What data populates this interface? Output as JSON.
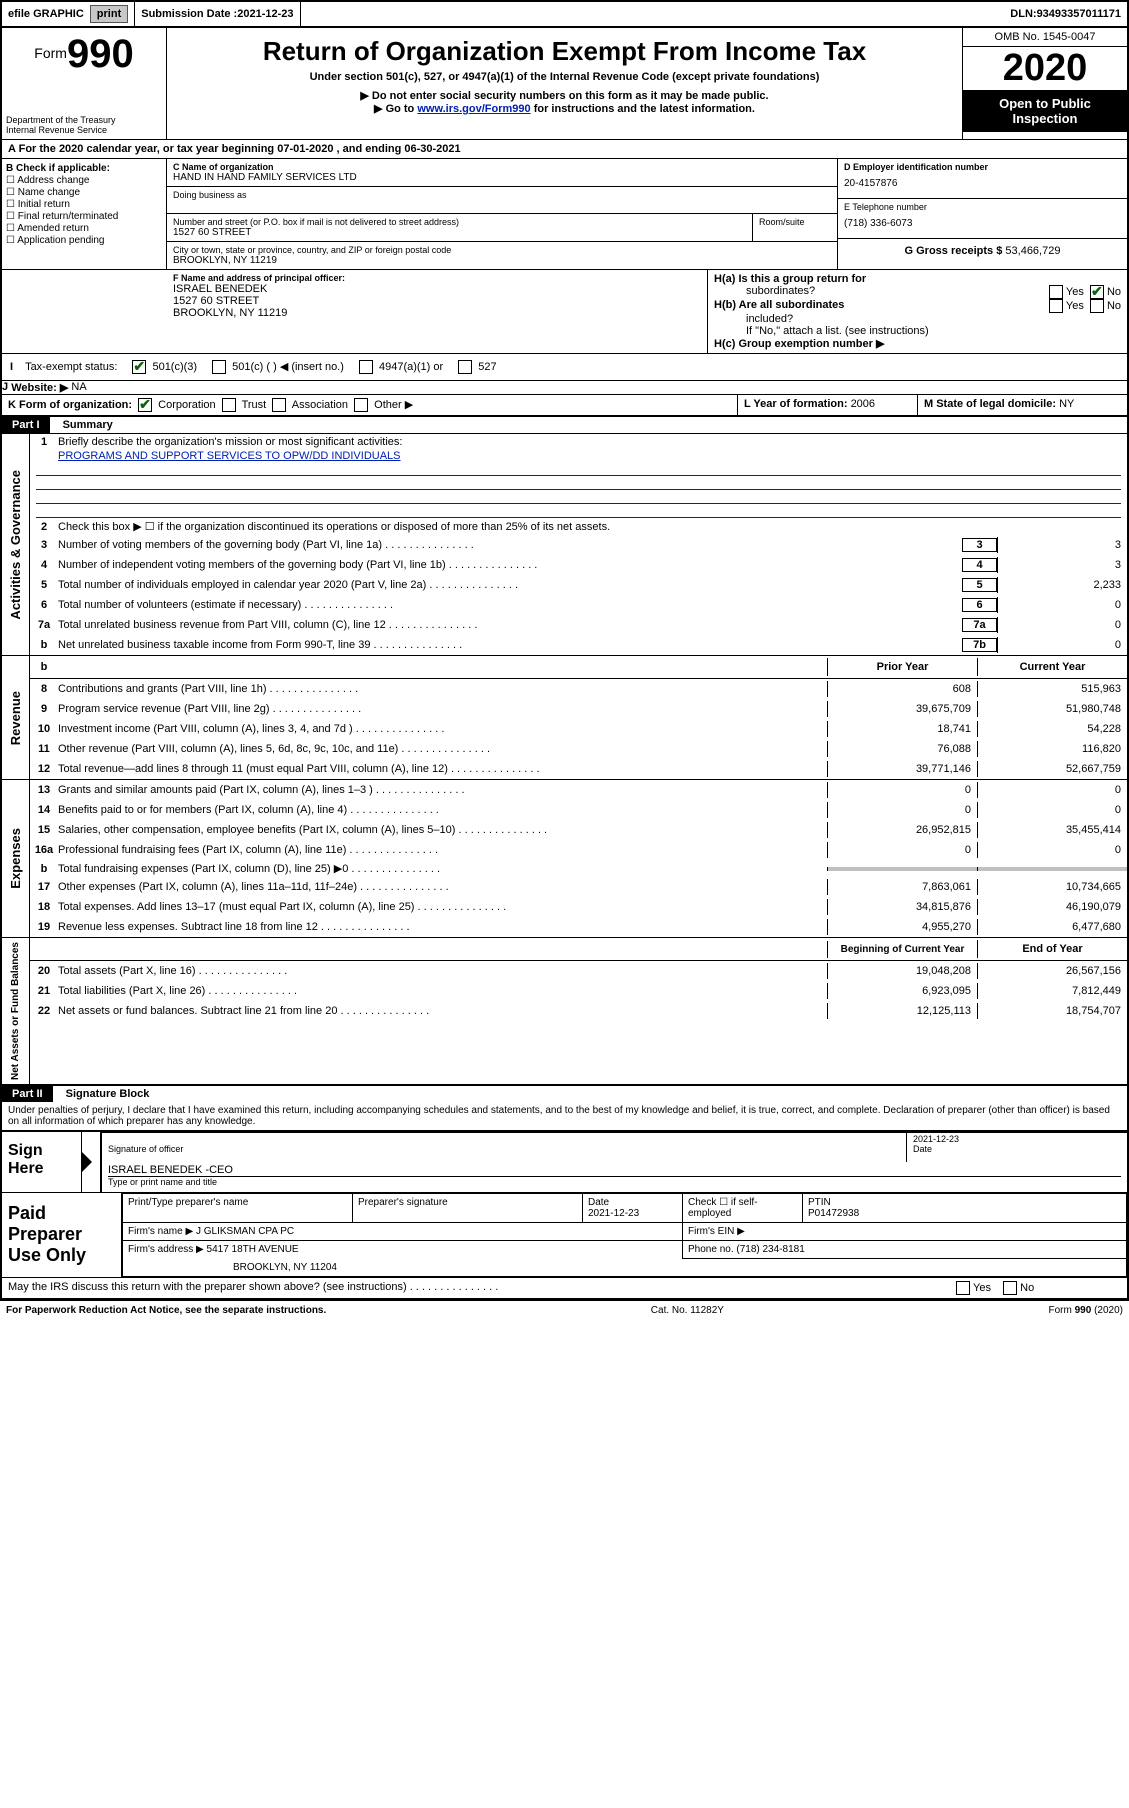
{
  "topbar": {
    "efile": "efile GRAPHIC",
    "print": "print",
    "subdate_label": "Submission Date : ",
    "subdate": "2021-12-23",
    "dln_label": "DLN: ",
    "dln": "93493357011171"
  },
  "header": {
    "form_label": "Form",
    "form_num": "990",
    "title": "Return of Organization Exempt From Income Tax",
    "subtitle": "Under section 501(c), 527, or 4947(a)(1) of the Internal Revenue Code (except private foundations)",
    "note1": "▶ Do not enter social security numbers on this form as it may be made public.",
    "note2_pre": "▶ Go to ",
    "note2_link": "www.irs.gov/Form990",
    "note2_post": " for instructions and the latest information.",
    "dept": "Department of the Treasury",
    "irs": "Internal Revenue Service",
    "omb": "OMB No. 1545-0047",
    "year": "2020",
    "open1": "Open to Public",
    "open2": "Inspection"
  },
  "period": {
    "text": "For the 2020 calendar year, or tax year beginning 07-01-2020     , and ending 06-30-2021"
  },
  "B": {
    "title": "B Check if applicable:",
    "items": [
      "Address change",
      "Name change",
      "Initial return",
      "Final return/terminated",
      "Amended return",
      "Application pending"
    ]
  },
  "C": {
    "name_label": "C Name of organization",
    "name": "HAND IN HAND FAMILY SERVICES LTD",
    "dba_label": "Doing business as",
    "dba": "",
    "addr_label": "Number and street (or P.O. box if mail is not delivered to street address)",
    "room_label": "Room/suite",
    "addr": "1527 60 STREET",
    "city_label": "City or town, state or province, country, and ZIP or foreign postal code",
    "city": "BROOKLYN, NY  11219"
  },
  "D": {
    "label": "D Employer identification number",
    "ein": "20-4157876"
  },
  "E": {
    "label": "E Telephone number",
    "phone": "(718) 336-6073"
  },
  "G": {
    "label": "G Gross receipts $ ",
    "val": "53,466,729"
  },
  "F": {
    "label": "F  Name and address of principal officer:",
    "name": "ISRAEL BENEDEK",
    "addr1": "1527 60 STREET",
    "addr2": "BROOKLYN, NY  11219"
  },
  "H": {
    "a": "H(a)  Is this a group return for",
    "a2": "subordinates?",
    "a_yes": "Yes",
    "a_no": "No",
    "b": "H(b)  Are all subordinates",
    "b2": "included?",
    "b_note": "If \"No,\" attach a list. (see instructions)",
    "c": "H(c)  Group exemption number ▶"
  },
  "I": {
    "label": "I",
    "text": "Tax-exempt status:",
    "o1": "501(c)(3)",
    "o2": "501(c) (  ) ◀ (insert no.)",
    "o3": "4947(a)(1) or",
    "o4": "527"
  },
  "J": {
    "label": "J",
    "text": "Website: ▶",
    "val": "NA"
  },
  "K": {
    "label": "K Form of organization:",
    "o1": "Corporation",
    "o2": "Trust",
    "o3": "Association",
    "o4": "Other ▶"
  },
  "L": {
    "label": "L Year of formation: ",
    "val": "2006"
  },
  "M": {
    "label": "M State of legal domicile: ",
    "val": "NY"
  },
  "partI": {
    "label": "Part I",
    "title": "Summary"
  },
  "summary": {
    "l1": "Briefly describe the organization's mission or most significant activities:",
    "l1v": "PROGRAMS AND SUPPORT SERVICES TO OPW/DD INDIVIDUALS",
    "l2": "Check this box ▶ ☐  if the organization discontinued its operations or disposed of more than 25% of its net assets.",
    "l3": "Number of voting members of the governing body (Part VI, line 1a)",
    "l3b": "3",
    "l3v": "3",
    "l4": "Number of independent voting members of the governing body (Part VI, line 1b)",
    "l4b": "4",
    "l4v": "3",
    "l5": "Total number of individuals employed in calendar year 2020 (Part V, line 2a)",
    "l5b": "5",
    "l5v": "2,233",
    "l6": "Total number of volunteers (estimate if necessary)",
    "l6b": "6",
    "l6v": "0",
    "l7a": "Total unrelated business revenue from Part VIII, column (C), line 12",
    "l7ab": "7a",
    "l7av": "0",
    "l7b": "Net unrelated business taxable income from Form 990-T, line 39",
    "l7bb": "7b",
    "l7bv": "0"
  },
  "revhdr": {
    "col_b": "b",
    "prior": "Prior Year",
    "curr": "Current Year"
  },
  "rev": [
    {
      "n": "8",
      "t": "Contributions and grants (Part VIII, line 1h)",
      "p": "608",
      "c": "515,963"
    },
    {
      "n": "9",
      "t": "Program service revenue (Part VIII, line 2g)",
      "p": "39,675,709",
      "c": "51,980,748"
    },
    {
      "n": "10",
      "t": "Investment income (Part VIII, column (A), lines 3, 4, and 7d )",
      "p": "18,741",
      "c": "54,228"
    },
    {
      "n": "11",
      "t": "Other revenue (Part VIII, column (A), lines 5, 6d, 8c, 9c, 10c, and 11e)",
      "p": "76,088",
      "c": "116,820"
    },
    {
      "n": "12",
      "t": "Total revenue—add lines 8 through 11 (must equal Part VIII, column (A), line 12)",
      "p": "39,771,146",
      "c": "52,667,759"
    }
  ],
  "exp": [
    {
      "n": "13",
      "t": "Grants and similar amounts paid (Part IX, column (A), lines 1–3 )",
      "p": "0",
      "c": "0"
    },
    {
      "n": "14",
      "t": "Benefits paid to or for members (Part IX, column (A), line 4)",
      "p": "0",
      "c": "0"
    },
    {
      "n": "15",
      "t": "Salaries, other compensation, employee benefits (Part IX, column (A), lines 5–10)",
      "p": "26,952,815",
      "c": "35,455,414"
    },
    {
      "n": "16a",
      "t": "Professional fundraising fees (Part IX, column (A), line 11e)",
      "p": "0",
      "c": "0"
    },
    {
      "n": "b",
      "t": "Total fundraising expenses (Part IX, column (D), line 25) ▶0",
      "p": "",
      "c": "",
      "shade": true
    },
    {
      "n": "17",
      "t": "Other expenses (Part IX, column (A), lines 11a–11d, 11f–24e)",
      "p": "7,863,061",
      "c": "10,734,665"
    },
    {
      "n": "18",
      "t": "Total expenses. Add lines 13–17 (must equal Part IX, column (A), line 25)",
      "p": "34,815,876",
      "c": "46,190,079"
    },
    {
      "n": "19",
      "t": "Revenue less expenses. Subtract line 18 from line 12",
      "p": "4,955,270",
      "c": "6,477,680"
    }
  ],
  "nethdr": {
    "prior": "Beginning of Current Year",
    "curr": "End of Year"
  },
  "net": [
    {
      "n": "20",
      "t": "Total assets (Part X, line 16)",
      "p": "19,048,208",
      "c": "26,567,156"
    },
    {
      "n": "21",
      "t": "Total liabilities (Part X, line 26)",
      "p": "6,923,095",
      "c": "7,812,449"
    },
    {
      "n": "22",
      "t": "Net assets or fund balances. Subtract line 21 from line 20",
      "p": "12,125,113",
      "c": "18,754,707"
    }
  ],
  "sidelabels": {
    "gov": "Activities & Governance",
    "rev": "Revenue",
    "exp": "Expenses",
    "net": "Net Assets or Fund Balances"
  },
  "partII": {
    "label": "Part II",
    "title": "Signature Block"
  },
  "perjury": "Under penalties of perjury, I declare that I have examined this return, including accompanying schedules and statements, and to the best of my knowledge and belief, it is true, correct, and complete. Declaration of preparer (other than officer) is based on all information of which preparer has any knowledge.",
  "sign": {
    "here": "Sign Here",
    "sig": "Signature of officer",
    "date_label": "Date",
    "date": "2021-12-23",
    "name": "ISRAEL BENEDEK  -CEO",
    "nametype": "Type or print name and title"
  },
  "prep": {
    "label": "Paid Preparer Use Only",
    "h1": "Print/Type preparer's name",
    "h2": "Preparer's signature",
    "h3": "Date",
    "h3v": "2021-12-23",
    "h4": "Check ☐ if self-employed",
    "h5": "PTIN",
    "h5v": "P01472938",
    "firm_l": "Firm's name   ▶",
    "firm": "J GLIKSMAN CPA PC",
    "ein_l": "Firm's EIN ▶",
    "addr_l": "Firm's address ▶",
    "addr": "5417 18TH AVENUE",
    "addr2": "BROOKLYN, NY  11204",
    "phone_l": "Phone no. ",
    "phone": "(718) 234-8181"
  },
  "discuss": "May the IRS discuss this return with the preparer shown above? (see instructions)",
  "footer": {
    "left": "For Paperwork Reduction Act Notice, see the separate instructions.",
    "mid": "Cat. No. 11282Y",
    "right": "Form 990 (2020)"
  }
}
